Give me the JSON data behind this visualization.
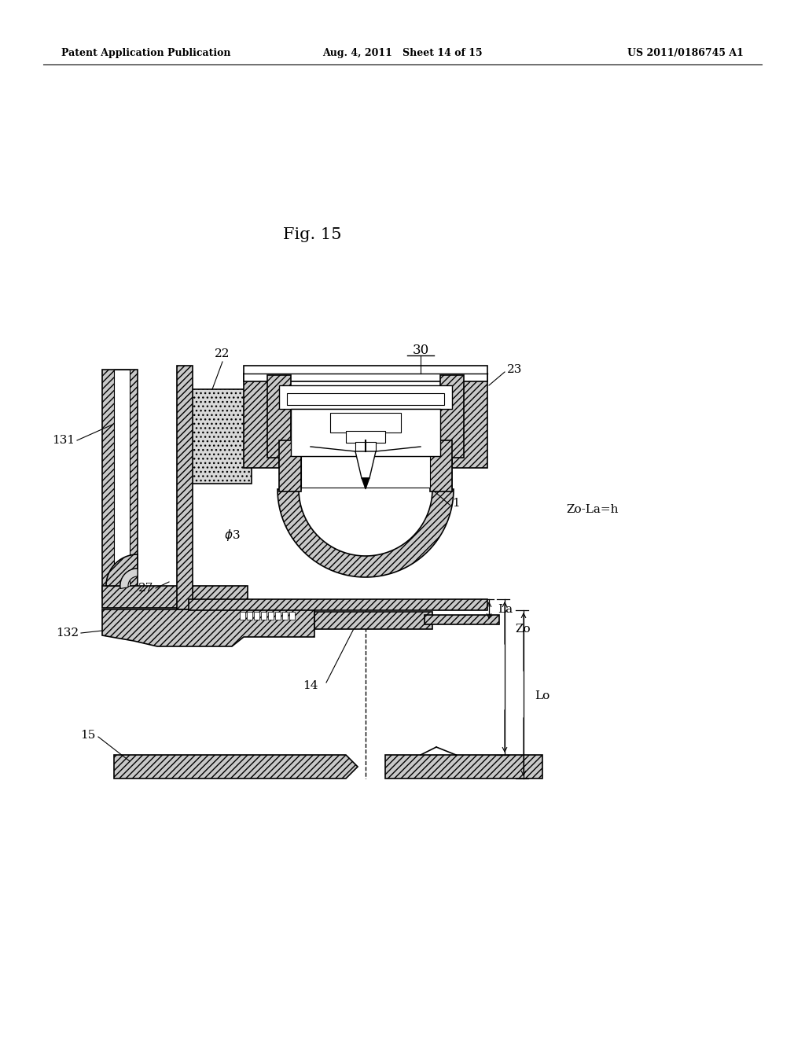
{
  "header_left": "Patent Application Publication",
  "header_mid": "Aug. 4, 2011   Sheet 14 of 15",
  "header_right": "US 2011/0186745 A1",
  "fig_title": "Fig. 15",
  "bg_color": "#ffffff"
}
